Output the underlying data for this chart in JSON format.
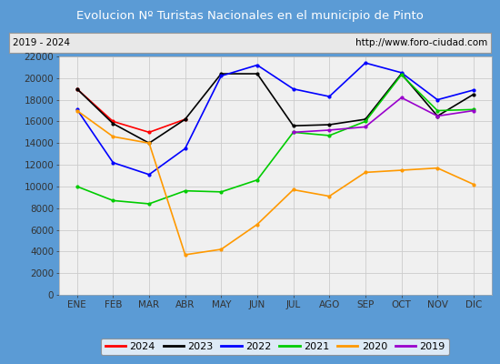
{
  "title": "Evolucion Nº Turistas Nacionales en el municipio de Pinto",
  "subtitle_left": "2019 - 2024",
  "subtitle_right": "http://www.foro-ciudad.com",
  "title_bg_color": "#5b9bd5",
  "title_text_color": "#ffffff",
  "plot_bg_color": "#f0f0f0",
  "outer_bg_color": "#5b9bd5",
  "months": [
    "ENE",
    "FEB",
    "MAR",
    "ABR",
    "MAY",
    "JUN",
    "JUL",
    "AGO",
    "SEP",
    "OCT",
    "NOV",
    "DIC"
  ],
  "ylim": [
    0,
    22000
  ],
  "yticks": [
    0,
    2000,
    4000,
    6000,
    8000,
    10000,
    12000,
    14000,
    16000,
    18000,
    20000,
    22000
  ],
  "series": {
    "2024": {
      "color": "#ff0000",
      "linewidth": 1.2,
      "data": [
        19000,
        16000,
        15000,
        16200,
        null,
        null,
        null,
        null,
        null,
        null,
        null,
        null
      ]
    },
    "2023": {
      "color": "#000000",
      "linewidth": 1.2,
      "data": [
        19000,
        15800,
        14000,
        16200,
        20400,
        20400,
        15600,
        15700,
        16200,
        20400,
        16500,
        18500
      ]
    },
    "2022": {
      "color": "#0000ff",
      "linewidth": 1.2,
      "data": [
        17100,
        12200,
        11100,
        13500,
        20200,
        21200,
        19000,
        18300,
        21400,
        20500,
        18000,
        18900
      ]
    },
    "2021": {
      "color": "#00cc00",
      "linewidth": 1.2,
      "data": [
        10000,
        8700,
        8400,
        9600,
        9500,
        10600,
        15000,
        14700,
        16000,
        20300,
        17000,
        17100
      ]
    },
    "2020": {
      "color": "#ff9900",
      "linewidth": 1.2,
      "data": [
        17000,
        14600,
        14000,
        3700,
        4200,
        6500,
        9700,
        9100,
        11300,
        11500,
        11700,
        10200
      ]
    },
    "2019": {
      "color": "#9900cc",
      "linewidth": 1.2,
      "data": [
        null,
        null,
        null,
        null,
        null,
        null,
        15000,
        15200,
        15500,
        18200,
        16500,
        17000
      ]
    }
  },
  "legend_order": [
    "2024",
    "2023",
    "2022",
    "2021",
    "2020",
    "2019"
  ]
}
